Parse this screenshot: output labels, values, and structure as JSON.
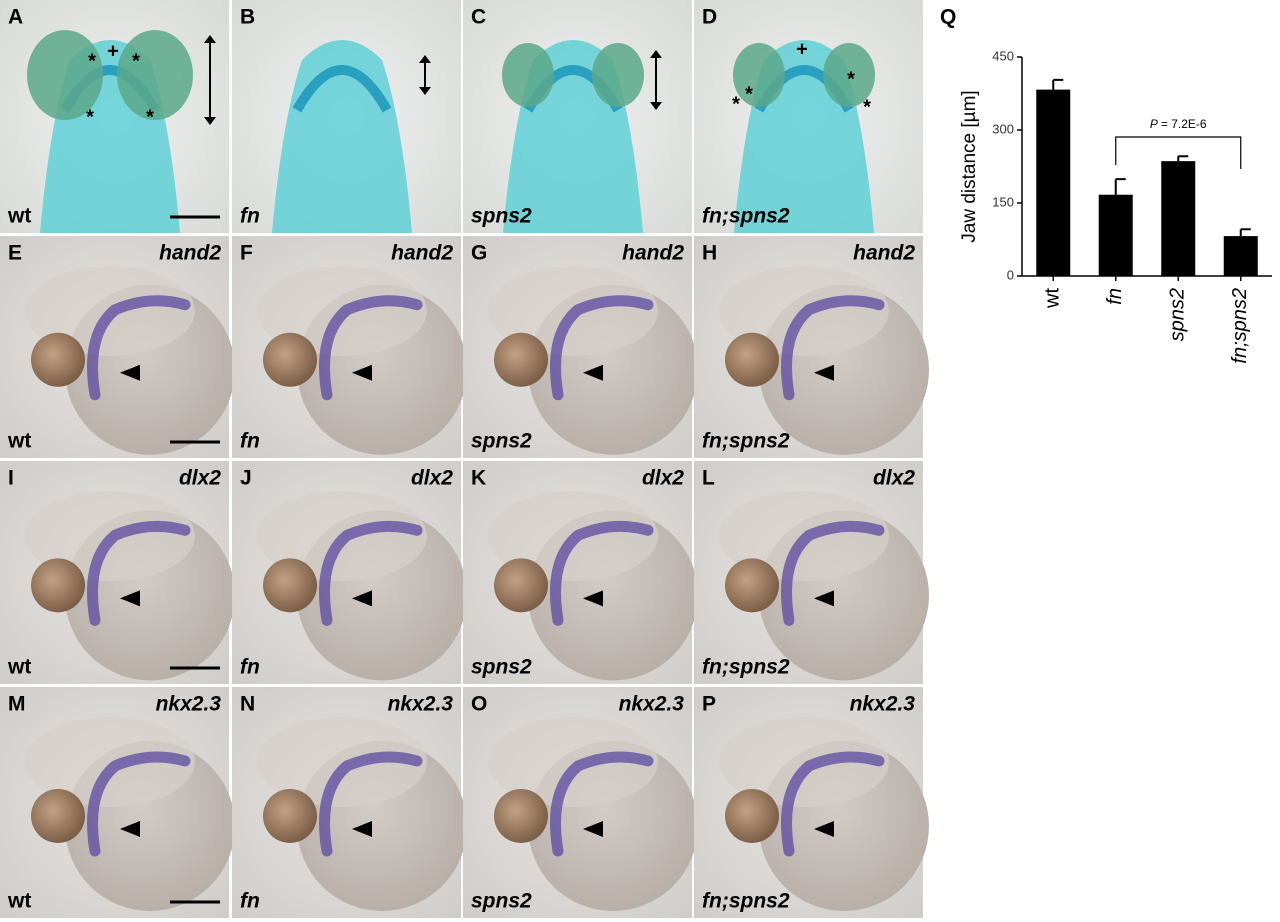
{
  "panels": [
    {
      "letter": "A",
      "genotype": "wt",
      "marks": [
        "*",
        "+",
        "*",
        "*",
        "*"
      ]
    },
    {
      "letter": "B",
      "genotype": "fn"
    },
    {
      "letter": "C",
      "genotype": "spns2"
    },
    {
      "letter": "D",
      "genotype": "fn;spns2",
      "marks": [
        "+",
        "*",
        "*",
        "*",
        "*"
      ]
    },
    {
      "letter": "E",
      "gene": "hand2",
      "genotype": "wt"
    },
    {
      "letter": "F",
      "gene": "hand2",
      "genotype": "fn"
    },
    {
      "letter": "G",
      "gene": "hand2",
      "genotype": "spns2"
    },
    {
      "letter": "H",
      "gene": "hand2",
      "genotype": "fn;spns2"
    },
    {
      "letter": "I",
      "gene": "dlx2",
      "genotype": "wt"
    },
    {
      "letter": "J",
      "gene": "dlx2",
      "genotype": "fn"
    },
    {
      "letter": "K",
      "gene": "dlx2",
      "genotype": "spns2"
    },
    {
      "letter": "L",
      "gene": "dlx2",
      "genotype": "fn;spns2"
    },
    {
      "letter": "M",
      "gene": "nkx2.3",
      "genotype": "wt"
    },
    {
      "letter": "N",
      "gene": "nkx2.3",
      "genotype": "fn"
    },
    {
      "letter": "O",
      "gene": "nkx2.3",
      "genotype": "spns2"
    },
    {
      "letter": "P",
      "gene": "nkx2.3",
      "genotype": "fn;spns2"
    }
  ],
  "chart_data": {
    "type": "bar",
    "panel_label": "Q",
    "y_label": "Jaw distance [µm]",
    "categories": [
      "wt",
      "fn",
      "spns2",
      "fn;spns2"
    ],
    "values": [
      383,
      167,
      236,
      82
    ],
    "errors": [
      20,
      32,
      10,
      14
    ],
    "color": "#000000",
    "ylim": [
      0,
      450
    ],
    "yticks": [
      0,
      150,
      300,
      450
    ],
    "annotation": {
      "symbol": "P",
      "text": "= 7.2E-6"
    }
  }
}
